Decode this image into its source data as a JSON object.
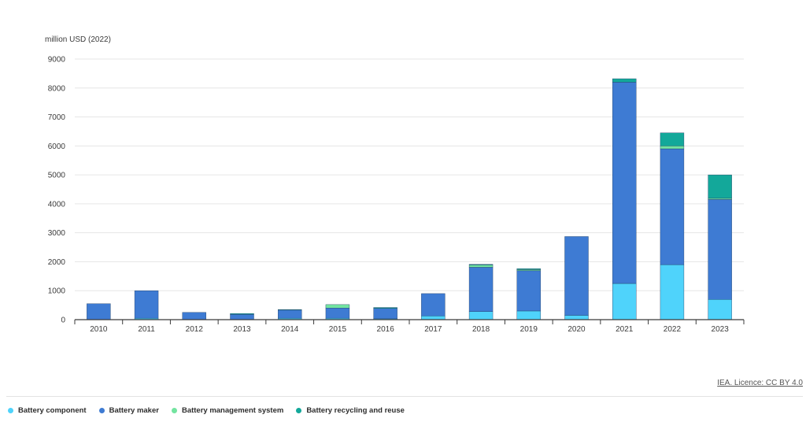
{
  "chart_data": {
    "type": "bar",
    "stacked": true,
    "title": "",
    "ylabel": "million USD (2022)",
    "xlabel": "",
    "ylim": [
      0,
      9000
    ],
    "yticks": [
      0,
      1000,
      2000,
      3000,
      4000,
      5000,
      6000,
      7000,
      8000,
      9000
    ],
    "grid": true,
    "legend_position": "bottom-left",
    "categories": [
      "2010",
      "2011",
      "2012",
      "2013",
      "2014",
      "2015",
      "2016",
      "2017",
      "2018",
      "2019",
      "2020",
      "2021",
      "2022",
      "2023"
    ],
    "series": [
      {
        "name": "Battery component",
        "color": "#4fd3fb",
        "values": [
          0,
          50,
          0,
          0,
          50,
          50,
          30,
          130,
          280,
          300,
          150,
          1250,
          1900,
          700
        ]
      },
      {
        "name": "Battery maker",
        "color": "#3e7bd3",
        "values": [
          550,
          950,
          250,
          180,
          280,
          350,
          360,
          770,
          1530,
          1390,
          2720,
          6950,
          4000,
          3450
        ]
      },
      {
        "name": "Battery management system",
        "color": "#73e4a0",
        "values": [
          0,
          0,
          0,
          0,
          0,
          120,
          0,
          0,
          80,
          40,
          0,
          0,
          100,
          40
        ]
      },
      {
        "name": "Battery recycling and reuse",
        "color": "#13a89a",
        "values": [
          0,
          0,
          0,
          30,
          20,
          0,
          30,
          0,
          20,
          30,
          0,
          120,
          450,
          810
        ]
      }
    ]
  },
  "source": {
    "licence": "IEA. Licence: CC BY 4.0"
  }
}
